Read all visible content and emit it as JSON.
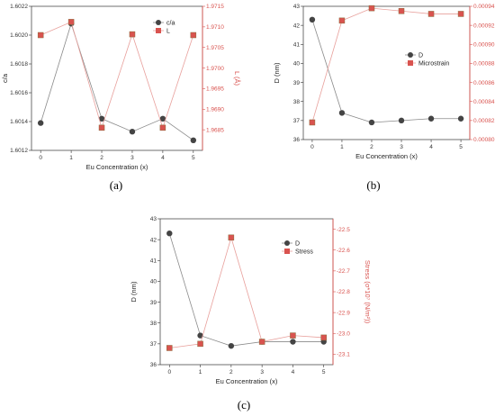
{
  "chart_data": [
    {
      "type": "line",
      "caption": "(a)",
      "xlabel": "Eu Concentration (x)",
      "ylabel": "c/a",
      "ylabel_right": "L (Å)",
      "x": [
        0,
        1,
        2,
        3,
        4,
        5
      ],
      "xlim": [
        -0.3,
        5.3
      ],
      "ylim": [
        1.6012,
        1.6022
      ],
      "yticks": [
        "1.6012",
        "1.6014",
        "1.6016",
        "1.6018",
        "1.6020",
        "1.6022"
      ],
      "ylim_right": [
        1.968,
        1.9715
      ],
      "yticks_right": [
        "1.9685",
        "1.9690",
        "1.9695",
        "1.9700",
        "1.9705",
        "1.9710",
        "1.9715"
      ],
      "legend": "top-right",
      "series": [
        {
          "name": "c/a",
          "axis": "left",
          "marker": "circle",
          "color": "#444444",
          "values": [
            1.60139,
            1.60208,
            1.60142,
            1.60133,
            1.60142,
            1.60127
          ]
        },
        {
          "name": "L",
          "axis": "right",
          "marker": "square",
          "color": "#d9534f",
          "values": [
            1.9708,
            1.97112,
            1.96855,
            1.97082,
            1.96855,
            1.9708
          ]
        }
      ]
    },
    {
      "type": "line",
      "caption": "(b)",
      "xlabel": "Eu Concentration (x)",
      "ylabel": "D (nm)",
      "ylabel_right": "Microstrain",
      "x": [
        0,
        1,
        2,
        3,
        4,
        5
      ],
      "xlim": [
        -0.3,
        5.3
      ],
      "ylim": [
        36,
        43
      ],
      "yticks": [
        "36",
        "37",
        "38",
        "39",
        "40",
        "41",
        "42",
        "43"
      ],
      "ylim_right": [
        0.0008,
        0.00094
      ],
      "yticks_right": [
        "0.00080",
        "0.00082",
        "0.00084",
        "0.00086",
        "0.00088",
        "0.00090",
        "0.00092",
        "0.00094"
      ],
      "legend": "center-right",
      "series": [
        {
          "name": "D",
          "axis": "left",
          "marker": "circle",
          "color": "#444444",
          "values": [
            42.3,
            37.4,
            36.9,
            37.0,
            37.1,
            37.1
          ]
        },
        {
          "name": "Microstrain",
          "axis": "right",
          "marker": "square",
          "color": "#d9534f",
          "values": [
            0.000818,
            0.000925,
            0.000938,
            0.000935,
            0.000932,
            0.000932
          ]
        }
      ]
    },
    {
      "type": "line",
      "caption": "(c)",
      "xlabel": "Eu Concentration (x)",
      "ylabel": "D (nm)",
      "ylabel_right": "Stress (σ*10⁷ (N/m²))",
      "x": [
        0,
        1,
        2,
        3,
        4,
        5
      ],
      "xlim": [
        -0.3,
        5.3
      ],
      "ylim": [
        36,
        43
      ],
      "yticks": [
        "36",
        "37",
        "38",
        "39",
        "40",
        "41",
        "42",
        "43"
      ],
      "ylim_right": [
        -23.15,
        -22.45
      ],
      "yticks_right": [
        "-22.5",
        "-22.6",
        "-22.7",
        "-22.8",
        "-22.9",
        "-23.0",
        "-23.1"
      ],
      "legend": "top-right",
      "series": [
        {
          "name": "D",
          "axis": "left",
          "marker": "circle",
          "color": "#444444",
          "values": [
            42.3,
            37.4,
            36.9,
            37.1,
            37.1,
            37.1
          ]
        },
        {
          "name": "Stress",
          "axis": "right",
          "marker": "square",
          "color": "#d9534f",
          "values": [
            -23.07,
            -23.05,
            -22.54,
            -23.04,
            -23.01,
            -23.02
          ]
        }
      ]
    }
  ]
}
